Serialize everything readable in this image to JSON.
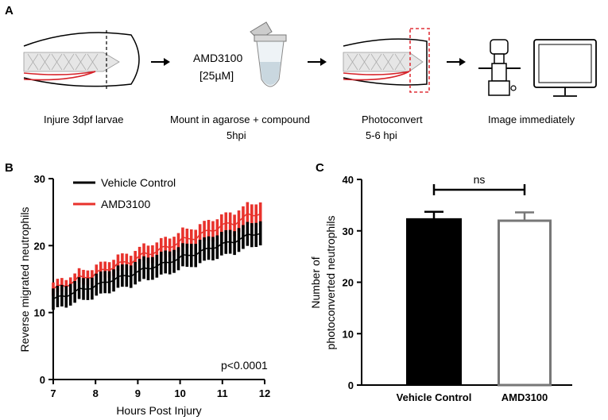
{
  "panel_a": {
    "letter": "A",
    "steps": [
      {
        "caption": "Injure 3dpf larvae"
      },
      {
        "compound_line1": "AMD3100",
        "compound_line2": "[25µM]",
        "caption_line1": "Mount in agarose + compound",
        "caption_line2": "5hpi"
      },
      {
        "caption_line1": "Photoconvert",
        "caption_line2": "5-6  hpi"
      },
      {
        "caption": "Image immediately"
      }
    ]
  },
  "colors": {
    "vehicle": "#000000",
    "amd": "#e8322c",
    "vehicle_bar": "#000000",
    "amd_bar_edge": "#777777",
    "dashed_box": "#e0323a"
  },
  "chart_data": [
    {
      "panel": "B",
      "type": "line",
      "title": "",
      "xlabel": "Hours Post Injury",
      "ylabel": "Reverse migrated neutrophils",
      "xlim": [
        7,
        12
      ],
      "ylim": [
        0,
        30
      ],
      "xticks": [
        "7",
        "8",
        "9",
        "10",
        "11",
        "12"
      ],
      "yticks": [
        "0",
        "10",
        "20",
        "30"
      ],
      "series": [
        {
          "name": "Vehicle Control",
          "color": "#000000",
          "x_start": 7.0,
          "x_end": 11.9,
          "n_points": 49,
          "mean_start": 12.0,
          "mean_end": 22.0,
          "err_start": 1.6,
          "err_end": 1.8
        },
        {
          "name": "AMD3100",
          "color": "#e8322c",
          "x_start": 7.0,
          "x_end": 11.9,
          "n_points": 49,
          "mean_start": 13.5,
          "mean_end": 25.0,
          "err_start": 1.0,
          "err_end": 1.7
        }
      ],
      "annotation": "p<0.0001",
      "legend_position": "top-left"
    },
    {
      "panel": "C",
      "type": "bar",
      "title": "",
      "xlabel": "",
      "ylabel_line1": "Number of",
      "ylabel_line2": "photoconverted neutrophils",
      "ylim": [
        0,
        40
      ],
      "yticks": [
        "0",
        "10",
        "20",
        "30",
        "40"
      ],
      "categories": [
        "Vehicle Control",
        "AMD3100"
      ],
      "values": [
        32.3,
        32.2
      ],
      "errors": [
        1.4,
        1.4
      ],
      "significance": {
        "label": "ns",
        "between": [
          0,
          1
        ],
        "y": 38
      }
    }
  ]
}
